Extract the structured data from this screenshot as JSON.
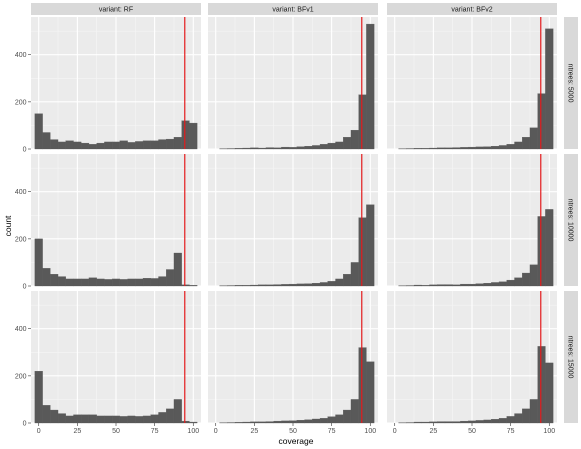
{
  "chart_data": {
    "type": "bar",
    "subtype": "faceted-histogram",
    "xlabel": "coverage",
    "ylabel": "count",
    "xlim": [
      -5,
      105
    ],
    "ylim": [
      0,
      560
    ],
    "x_ticks": [
      0,
      25,
      50,
      75,
      100
    ],
    "y_ticks": [
      0,
      200,
      400
    ],
    "bin_width": 5,
    "bin_centers": [
      0,
      5,
      10,
      15,
      20,
      25,
      30,
      35,
      40,
      45,
      50,
      55,
      60,
      65,
      70,
      75,
      80,
      85,
      90,
      95,
      100
    ],
    "reference_line": {
      "x": 94.5,
      "color": "#e41a1c"
    },
    "grid": true,
    "col_facet_labels": [
      "variant: RF",
      "variant: BFv1",
      "variant: BFv2"
    ],
    "row_facet_labels": [
      "ntrees: 5000",
      "ntrees: 10000",
      "ntrees: 15000"
    ],
    "panels": [
      {
        "row": 0,
        "col": 0,
        "values": [
          150,
          70,
          40,
          30,
          35,
          30,
          25,
          20,
          25,
          30,
          30,
          35,
          28,
          32,
          35,
          35,
          40,
          42,
          50,
          120,
          110
        ]
      },
      {
        "row": 0,
        "col": 1,
        "values": [
          0,
          1,
          2,
          3,
          4,
          5,
          4,
          6,
          5,
          8,
          7,
          10,
          12,
          15,
          20,
          25,
          30,
          50,
          80,
          230,
          530
        ]
      },
      {
        "row": 0,
        "col": 2,
        "values": [
          0,
          1,
          2,
          3,
          3,
          4,
          5,
          5,
          6,
          7,
          8,
          9,
          10,
          12,
          15,
          20,
          30,
          50,
          90,
          235,
          510
        ]
      },
      {
        "row": 1,
        "col": 0,
        "values": [
          200,
          75,
          50,
          40,
          30,
          30,
          30,
          35,
          30,
          28,
          30,
          28,
          30,
          30,
          33,
          32,
          40,
          70,
          140,
          5,
          3
        ]
      },
      {
        "row": 1,
        "col": 1,
        "values": [
          0,
          1,
          2,
          3,
          3,
          4,
          5,
          5,
          6,
          7,
          8,
          9,
          10,
          12,
          15,
          20,
          30,
          50,
          100,
          290,
          345
        ]
      },
      {
        "row": 1,
        "col": 2,
        "values": [
          0,
          1,
          2,
          4,
          3,
          5,
          6,
          6,
          5,
          8,
          8,
          10,
          12,
          15,
          18,
          25,
          35,
          55,
          90,
          295,
          325
        ]
      },
      {
        "row": 2,
        "col": 0,
        "values": [
          220,
          75,
          55,
          40,
          30,
          35,
          35,
          35,
          30,
          30,
          30,
          28,
          30,
          28,
          30,
          35,
          45,
          60,
          100,
          8,
          4
        ]
      },
      {
        "row": 2,
        "col": 1,
        "values": [
          0,
          1,
          2,
          3,
          4,
          5,
          5,
          6,
          8,
          9,
          10,
          12,
          14,
          17,
          20,
          27,
          35,
          55,
          100,
          320,
          260
        ]
      },
      {
        "row": 2,
        "col": 2,
        "values": [
          0,
          1,
          2,
          4,
          4,
          5,
          6,
          6,
          6,
          8,
          9,
          11,
          13,
          16,
          20,
          28,
          40,
          60,
          100,
          325,
          255
        ]
      }
    ],
    "colors": {
      "bar_fill": "#595959",
      "panel_bg": "#ebebeb",
      "strip_bg": "#d9d9d9",
      "grid_major": "#ffffff",
      "reference_line": "#e41a1c"
    }
  }
}
